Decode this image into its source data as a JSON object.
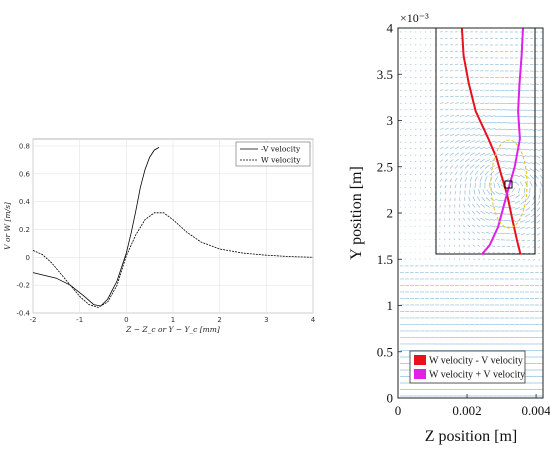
{
  "chart_data": [
    {
      "type": "line",
      "xlabel": "Z − Z_c or Y − Y_c [mm]",
      "ylabel": "V or W [m/s]",
      "xlim": [
        -2,
        4
      ],
      "ylim": [
        -0.4,
        0.85
      ],
      "xticks": [
        "-2",
        "-1",
        "0",
        "1",
        "2",
        "3",
        "4"
      ],
      "yticks": [
        "-0.4",
        "-0.2",
        "0",
        "0.2",
        "0.4",
        "0.6",
        "0.8"
      ],
      "grid": true,
      "legend_position": "top-right",
      "series": [
        {
          "name": "-V velocity",
          "style": "solid",
          "x": [
            -2.0,
            -1.5,
            -1.2,
            -0.9,
            -0.7,
            -0.55,
            -0.4,
            -0.2,
            0.0,
            0.1,
            0.2,
            0.3,
            0.4,
            0.5,
            0.6,
            0.7
          ],
          "y": [
            -0.11,
            -0.15,
            -0.2,
            -0.28,
            -0.34,
            -0.35,
            -0.3,
            -0.17,
            0.03,
            0.17,
            0.33,
            0.5,
            0.63,
            0.72,
            0.77,
            0.79
          ]
        },
        {
          "name": "W velocity",
          "style": "dashed",
          "x": [
            -2.0,
            -1.8,
            -1.6,
            -1.4,
            -1.2,
            -1.0,
            -0.8,
            -0.6,
            -0.4,
            -0.2,
            0.0,
            0.2,
            0.4,
            0.6,
            0.8,
            1.0,
            1.3,
            1.6,
            2.0,
            2.5,
            3.0,
            3.5,
            4.0
          ],
          "y": [
            0.05,
            0.02,
            -0.04,
            -0.12,
            -0.2,
            -0.28,
            -0.34,
            -0.36,
            -0.32,
            -0.2,
            0.01,
            0.16,
            0.27,
            0.32,
            0.32,
            0.27,
            0.18,
            0.11,
            0.06,
            0.03,
            0.015,
            0.005,
            0.0
          ]
        }
      ]
    },
    {
      "type": "line",
      "xlabel": "Z position [m]",
      "ylabel": "Y position [m]",
      "y_exponent": "×10⁻³",
      "xlim": [
        0,
        0.0042
      ],
      "ylim": [
        0,
        0.004
      ],
      "xticks": [
        "0",
        "0.002",
        "0.004"
      ],
      "yticks": [
        "0",
        "0.5",
        "1",
        "1.5",
        "2",
        "2.5",
        "3",
        "3.5",
        "4"
      ],
      "legend_position": "bottom-right",
      "background": "quiver vector field",
      "series": [
        {
          "name": "W velocity - V velocity",
          "color": "#e8101c",
          "points": [
            [
              0.00185,
              0.004
            ],
            [
              0.0019,
              0.0037
            ],
            [
              0.00205,
              0.0034
            ],
            [
              0.00225,
              0.0031
            ],
            [
              0.00262,
              0.0028
            ],
            [
              0.00285,
              0.0026
            ],
            [
              0.003,
              0.0024
            ],
            [
              0.00316,
              0.0022
            ],
            [
              0.00333,
              0.0019
            ],
            [
              0.00345,
              0.0017
            ],
            [
              0.00355,
              0.00155
            ]
          ]
        },
        {
          "name": "W velocity + V velocity",
          "color": "#e020e8",
          "points": [
            [
              0.00362,
              0.004
            ],
            [
              0.00358,
              0.0037
            ],
            [
              0.00352,
              0.0034
            ],
            [
              0.00348,
              0.0031
            ],
            [
              0.00353,
              0.0028
            ],
            [
              0.00338,
              0.0025
            ],
            [
              0.00315,
              0.0022
            ],
            [
              0.0029,
              0.00185
            ],
            [
              0.00265,
              0.00165
            ],
            [
              0.00242,
              0.00155
            ]
          ]
        }
      ]
    }
  ]
}
